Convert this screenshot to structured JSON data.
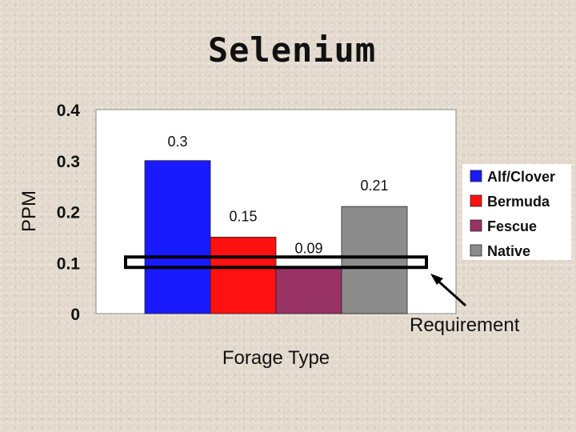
{
  "chart_data": {
    "type": "bar",
    "title": "Selenium",
    "xlabel": "Forage Type",
    "ylabel": "PPM",
    "ylim": [
      0,
      0.4
    ],
    "yticks": [
      "0",
      "0.1",
      "0.2",
      "0.3",
      "0.4"
    ],
    "yticks_values": [
      0,
      0.1,
      0.2,
      0.3,
      0.4
    ],
    "grid": false,
    "legend_position": "right",
    "series": [
      {
        "name": "Alf/Clover",
        "value": 0.3,
        "label": "0.3",
        "color": "#1a1aff"
      },
      {
        "name": "Bermuda",
        "value": 0.15,
        "label": "0.15",
        "color": "#ff1111"
      },
      {
        "name": "Fescue",
        "value": 0.09,
        "label": "0.09",
        "color": "#993366"
      },
      {
        "name": "Native",
        "value": 0.21,
        "label": "0.21",
        "color": "#8c8c8c"
      }
    ],
    "annotation": {
      "text": "Requirement",
      "value": 0.1
    }
  }
}
